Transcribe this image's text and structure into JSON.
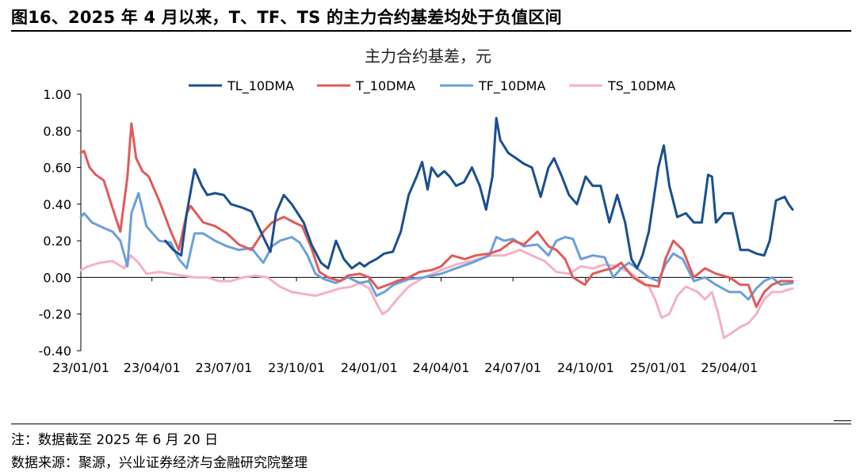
{
  "figure": {
    "title": "图16、2025 年 4 月以来，T、TF、TS 的主力合约基差均处于负值区间",
    "note": "注：数据截至 2025 年 6 月 20 日",
    "source": "数据来源：聚源，兴业证券经济与金融研究院整理"
  },
  "chart_data": {
    "type": "line",
    "title": "主力合约基差，元",
    "xlabel": "",
    "ylabel": "",
    "x_range": [
      "2023-01-01",
      "2025-06-20"
    ],
    "ylim": [
      -0.4,
      1.0
    ],
    "y_ticks": [
      1.0,
      0.8,
      0.6,
      0.4,
      0.2,
      0.0,
      -0.2,
      -0.4
    ],
    "y_tick_labels": [
      "1.00",
      "0.80",
      "0.60",
      "0.40",
      "0.20",
      "0.00",
      "-0.20",
      "-0.40"
    ],
    "x_ticks": [
      "2023-01-01",
      "2023-04-01",
      "2023-07-01",
      "2023-10-01",
      "2024-01-01",
      "2024-04-01",
      "2024-07-01",
      "2024-10-01",
      "2025-01-01",
      "2025-04-01"
    ],
    "x_tick_labels": [
      "23/01/01",
      "23/04/01",
      "23/07/01",
      "23/10/01",
      "24/01/01",
      "24/04/01",
      "24/07/01",
      "24/10/01",
      "25/01/01",
      "25/04/01"
    ],
    "grid": false,
    "legend_position": "top",
    "series": [
      {
        "name": "TL_10DMA",
        "color": "#1a4f8f",
        "x": [
          "2023-04-18",
          "2023-04-28",
          "2023-05-08",
          "2023-05-15",
          "2023-05-25",
          "2023-06-03",
          "2023-06-10",
          "2023-06-20",
          "2023-07-01",
          "2023-07-10",
          "2023-07-25",
          "2023-08-05",
          "2023-08-20",
          "2023-08-29",
          "2023-09-05",
          "2023-09-15",
          "2023-09-25",
          "2023-10-01",
          "2023-10-10",
          "2023-10-20",
          "2023-11-01",
          "2023-11-10",
          "2023-11-20",
          "2023-11-30",
          "2023-12-10",
          "2023-12-20",
          "2023-12-26",
          "2024-01-01",
          "2024-01-10",
          "2024-01-20",
          "2024-01-31",
          "2024-02-10",
          "2024-02-20",
          "2024-03-01",
          "2024-03-08",
          "2024-03-15",
          "2024-03-20",
          "2024-03-28",
          "2024-04-05",
          "2024-04-12",
          "2024-04-20",
          "2024-04-30",
          "2024-05-10",
          "2024-05-20",
          "2024-05-28",
          "2024-06-05",
          "2024-06-10",
          "2024-06-15",
          "2024-06-25",
          "2024-07-05",
          "2024-07-15",
          "2024-07-25",
          "2024-08-05",
          "2024-08-15",
          "2024-08-22",
          "2024-09-01",
          "2024-09-10",
          "2024-09-20",
          "2024-10-01",
          "2024-10-10",
          "2024-10-20",
          "2024-10-31",
          "2024-11-10",
          "2024-11-20",
          "2024-11-28",
          "2024-12-05",
          "2024-12-12",
          "2024-12-20",
          "2025-01-01",
          "2025-01-08",
          "2025-01-15",
          "2025-01-25",
          "2025-02-05",
          "2025-02-15",
          "2025-02-25",
          "2025-03-05",
          "2025-03-10",
          "2025-03-15",
          "2025-03-25",
          "2025-04-05",
          "2025-04-15",
          "2025-04-25",
          "2025-05-05",
          "2025-05-15",
          "2025-05-22",
          "2025-05-30",
          "2025-06-10",
          "2025-06-15",
          "2025-06-20"
        ],
        "values": [
          0.2,
          0.15,
          0.12,
          0.35,
          0.59,
          0.5,
          0.45,
          0.46,
          0.45,
          0.4,
          0.38,
          0.36,
          0.22,
          0.14,
          0.35,
          0.45,
          0.4,
          0.36,
          0.3,
          0.18,
          0.08,
          0.05,
          0.2,
          0.1,
          0.05,
          0.08,
          0.06,
          0.08,
          0.1,
          0.13,
          0.14,
          0.25,
          0.45,
          0.55,
          0.63,
          0.48,
          0.6,
          0.55,
          0.58,
          0.55,
          0.5,
          0.52,
          0.6,
          0.5,
          0.37,
          0.55,
          0.87,
          0.75,
          0.68,
          0.65,
          0.62,
          0.6,
          0.44,
          0.6,
          0.65,
          0.55,
          0.45,
          0.4,
          0.55,
          0.5,
          0.5,
          0.3,
          0.45,
          0.3,
          0.1,
          0.05,
          0.12,
          0.25,
          0.6,
          0.72,
          0.5,
          0.33,
          0.35,
          0.3,
          0.3,
          0.56,
          0.55,
          0.3,
          0.35,
          0.35,
          0.15,
          0.15,
          0.13,
          0.12,
          0.2,
          0.42,
          0.44,
          0.4,
          0.37
        ]
      },
      {
        "name": "T_10DMA",
        "color": "#e05a5a",
        "x": [
          "2023-01-01",
          "2023-01-05",
          "2023-01-12",
          "2023-01-20",
          "2023-01-30",
          "2023-02-10",
          "2023-02-20",
          "2023-03-01",
          "2023-03-06",
          "2023-03-12",
          "2023-03-20",
          "2023-03-28",
          "2023-04-10",
          "2023-04-25",
          "2023-05-05",
          "2023-05-15",
          "2023-05-20",
          "2023-06-05",
          "2023-06-20",
          "2023-07-05",
          "2023-07-20",
          "2023-08-05",
          "2023-08-20",
          "2023-08-31",
          "2023-09-15",
          "2023-09-28",
          "2023-10-08",
          "2023-10-20",
          "2023-10-30",
          "2023-11-10",
          "2023-11-25",
          "2023-12-05",
          "2023-12-20",
          "2024-01-01",
          "2024-01-12",
          "2024-01-25",
          "2024-02-05",
          "2024-02-20",
          "2024-03-05",
          "2024-03-20",
          "2024-04-01",
          "2024-04-15",
          "2024-05-01",
          "2024-05-15",
          "2024-06-01",
          "2024-06-15",
          "2024-07-01",
          "2024-07-15",
          "2024-08-01",
          "2024-08-15",
          "2024-08-25",
          "2024-09-05",
          "2024-09-15",
          "2024-09-30",
          "2024-10-10",
          "2024-10-25",
          "2024-11-05",
          "2024-11-15",
          "2024-11-30",
          "2024-12-15",
          "2025-01-01",
          "2025-01-10",
          "2025-01-20",
          "2025-02-01",
          "2025-02-15",
          "2025-03-01",
          "2025-03-15",
          "2025-04-01",
          "2025-04-15",
          "2025-04-25",
          "2025-05-05",
          "2025-05-15",
          "2025-05-25",
          "2025-06-05",
          "2025-06-20"
        ],
        "values": [
          0.68,
          0.69,
          0.6,
          0.56,
          0.53,
          0.38,
          0.25,
          0.55,
          0.84,
          0.65,
          0.58,
          0.55,
          0.42,
          0.25,
          0.15,
          0.35,
          0.39,
          0.3,
          0.28,
          0.24,
          0.18,
          0.15,
          0.25,
          0.3,
          0.33,
          0.3,
          0.28,
          0.16,
          0.03,
          0.0,
          -0.02,
          0.01,
          0.02,
          0.0,
          -0.06,
          -0.04,
          -0.02,
          0.0,
          0.03,
          0.04,
          0.06,
          0.12,
          0.1,
          0.12,
          0.13,
          0.15,
          0.2,
          0.18,
          0.25,
          0.17,
          0.15,
          0.1,
          0.0,
          -0.04,
          0.02,
          0.04,
          0.05,
          0.08,
          0.0,
          -0.04,
          -0.05,
          0.1,
          0.2,
          0.15,
          0.0,
          0.05,
          0.02,
          0.0,
          -0.04,
          -0.04,
          -0.16,
          -0.08,
          -0.04,
          -0.02,
          -0.02
        ]
      },
      {
        "name": "TF_10DMA",
        "color": "#6b9fdc",
        "x": [
          "2023-01-01",
          "2023-01-05",
          "2023-01-15",
          "2023-01-30",
          "2023-02-10",
          "2023-02-20",
          "2023-03-01",
          "2023-03-06",
          "2023-03-15",
          "2023-03-25",
          "2023-04-10",
          "2023-04-25",
          "2023-05-05",
          "2023-05-15",
          "2023-05-25",
          "2023-06-05",
          "2023-06-20",
          "2023-07-05",
          "2023-07-20",
          "2023-08-05",
          "2023-08-20",
          "2023-08-31",
          "2023-09-10",
          "2023-09-25",
          "2023-10-05",
          "2023-10-15",
          "2023-10-25",
          "2023-11-05",
          "2023-11-20",
          "2023-12-05",
          "2023-12-20",
          "2024-01-01",
          "2024-01-10",
          "2024-01-20",
          "2024-02-01",
          "2024-02-20",
          "2024-03-10",
          "2024-04-01",
          "2024-04-20",
          "2024-05-10",
          "2024-06-01",
          "2024-06-10",
          "2024-06-20",
          "2024-07-01",
          "2024-07-15",
          "2024-08-01",
          "2024-08-15",
          "2024-08-25",
          "2024-09-05",
          "2024-09-15",
          "2024-09-25",
          "2024-10-10",
          "2024-10-25",
          "2024-11-05",
          "2024-11-15",
          "2024-11-25",
          "2024-12-05",
          "2024-12-20",
          "2025-01-01",
          "2025-01-10",
          "2025-01-20",
          "2025-02-01",
          "2025-02-15",
          "2025-03-01",
          "2025-03-15",
          "2025-04-01",
          "2025-04-15",
          "2025-04-25",
          "2025-05-05",
          "2025-05-15",
          "2025-05-25",
          "2025-06-05",
          "2025-06-20"
        ],
        "values": [
          0.33,
          0.35,
          0.3,
          0.27,
          0.25,
          0.2,
          0.06,
          0.35,
          0.46,
          0.28,
          0.2,
          0.19,
          0.1,
          0.05,
          0.24,
          0.24,
          0.2,
          0.17,
          0.15,
          0.16,
          0.08,
          0.17,
          0.2,
          0.22,
          0.19,
          0.12,
          0.02,
          -0.01,
          -0.03,
          0.0,
          -0.03,
          -0.02,
          -0.1,
          -0.08,
          -0.04,
          -0.01,
          0.0,
          0.02,
          0.05,
          0.08,
          0.12,
          0.22,
          0.2,
          0.21,
          0.17,
          0.18,
          0.12,
          0.2,
          0.22,
          0.21,
          0.1,
          0.12,
          0.11,
          0.0,
          0.05,
          0.08,
          0.05,
          0.0,
          -0.02,
          0.07,
          0.13,
          0.1,
          -0.02,
          0.0,
          -0.04,
          -0.08,
          -0.08,
          -0.12,
          -0.06,
          -0.02,
          0.0,
          -0.04,
          -0.03
        ]
      },
      {
        "name": "TS_10DMA",
        "color": "#f5b1c3",
        "x": [
          "2023-01-01",
          "2023-01-10",
          "2023-01-25",
          "2023-02-10",
          "2023-02-25",
          "2023-03-05",
          "2023-03-15",
          "2023-03-25",
          "2023-04-10",
          "2023-04-25",
          "2023-05-10",
          "2023-05-25",
          "2023-06-10",
          "2023-06-25",
          "2023-07-10",
          "2023-07-25",
          "2023-08-10",
          "2023-08-25",
          "2023-09-10",
          "2023-09-25",
          "2023-10-10",
          "2023-10-25",
          "2023-11-10",
          "2023-11-25",
          "2023-12-10",
          "2023-12-20",
          "2024-01-01",
          "2024-01-10",
          "2024-01-18",
          "2024-01-25",
          "2024-02-05",
          "2024-02-20",
          "2024-03-10",
          "2024-04-01",
          "2024-04-20",
          "2024-05-10",
          "2024-06-01",
          "2024-06-20",
          "2024-07-10",
          "2024-07-25",
          "2024-08-10",
          "2024-08-25",
          "2024-09-10",
          "2024-09-25",
          "2024-10-10",
          "2024-10-25",
          "2024-11-10",
          "2024-11-25",
          "2024-12-10",
          "2024-12-20",
          "2024-12-28",
          "2025-01-05",
          "2025-01-15",
          "2025-01-25",
          "2025-02-05",
          "2025-02-20",
          "2025-03-01",
          "2025-03-10",
          "2025-03-18",
          "2025-03-25",
          "2025-04-05",
          "2025-04-15",
          "2025-04-25",
          "2025-05-05",
          "2025-05-15",
          "2025-05-25",
          "2025-06-05",
          "2025-06-20"
        ],
        "values": [
          0.04,
          0.06,
          0.08,
          0.09,
          0.05,
          0.12,
          0.08,
          0.02,
          0.03,
          0.02,
          0.01,
          0.0,
          0.0,
          -0.02,
          -0.02,
          0.0,
          0.01,
          0.0,
          -0.05,
          -0.08,
          -0.09,
          -0.1,
          -0.08,
          -0.06,
          -0.05,
          -0.03,
          -0.06,
          -0.14,
          -0.2,
          -0.18,
          -0.12,
          -0.05,
          0.0,
          0.04,
          0.07,
          0.09,
          0.12,
          0.12,
          0.15,
          0.12,
          0.09,
          0.03,
          0.02,
          0.06,
          0.05,
          0.07,
          0.06,
          0.03,
          -0.02,
          -0.05,
          -0.12,
          -0.22,
          -0.2,
          -0.1,
          -0.05,
          -0.08,
          -0.12,
          -0.08,
          -0.2,
          -0.33,
          -0.3,
          -0.27,
          -0.25,
          -0.2,
          -0.12,
          -0.08,
          -0.08,
          -0.06
        ]
      }
    ]
  }
}
